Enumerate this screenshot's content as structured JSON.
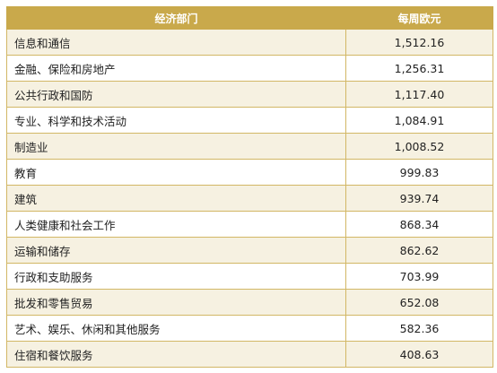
{
  "table": {
    "headers": [
      "经济部门",
      "每周欧元"
    ],
    "rows": [
      {
        "sector": "信息和通信",
        "value": "1,512.16"
      },
      {
        "sector": "金融、保险和房地产",
        "value": "1,256.31"
      },
      {
        "sector": "公共行政和国防",
        "value": "1,117.40"
      },
      {
        "sector": "专业、科学和技术活动",
        "value": "1,084.91"
      },
      {
        "sector": "制造业",
        "value": "1,008.52"
      },
      {
        "sector": "教育",
        "value": "999.83"
      },
      {
        "sector": "建筑",
        "value": "939.74"
      },
      {
        "sector": "人类健康和社会工作",
        "value": "868.34"
      },
      {
        "sector": "运输和储存",
        "value": "862.62"
      },
      {
        "sector": "行政和支助服务",
        "value": "703.99"
      },
      {
        "sector": "批发和零售贸易",
        "value": "652.08"
      },
      {
        "sector": "艺术、娱乐、休闲和其他服务",
        "value": "582.36"
      },
      {
        "sector": "住宿和餐饮服务",
        "value": "408.63"
      }
    ]
  },
  "colors": {
    "header_bg": "#c9a94b",
    "header_text": "#ffffff",
    "border": "#d2b765",
    "stripe": "#f6f1e1"
  }
}
